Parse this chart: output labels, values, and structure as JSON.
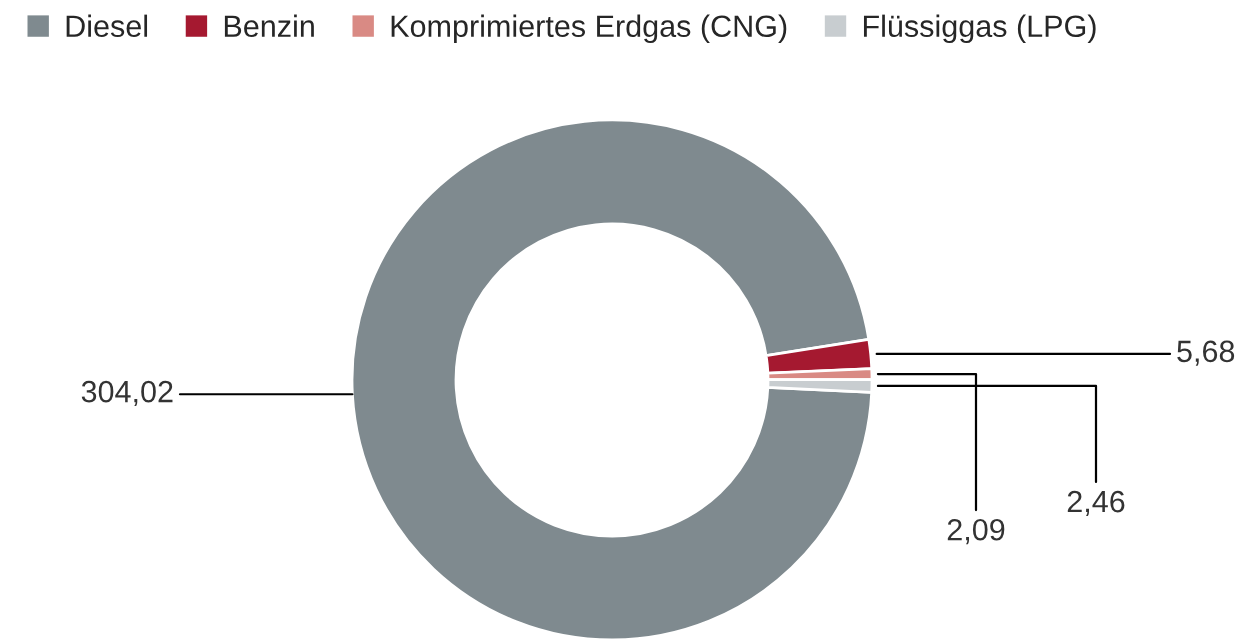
{
  "chart_data": {
    "type": "donut",
    "categories": [
      "Diesel",
      "Benzin",
      "Komprimiertes Erdgas (CNG)",
      "Flüssiggas (LPG)"
    ],
    "values": [
      304.02,
      5.68,
      2.09,
      2.46
    ],
    "colors": [
      "#7f8a8f",
      "#a51930",
      "#d98a84",
      "#c8cdd0"
    ],
    "value_labels": [
      "304,02",
      "5,68",
      "2,09",
      "2,46"
    ],
    "legend": "top left"
  }
}
